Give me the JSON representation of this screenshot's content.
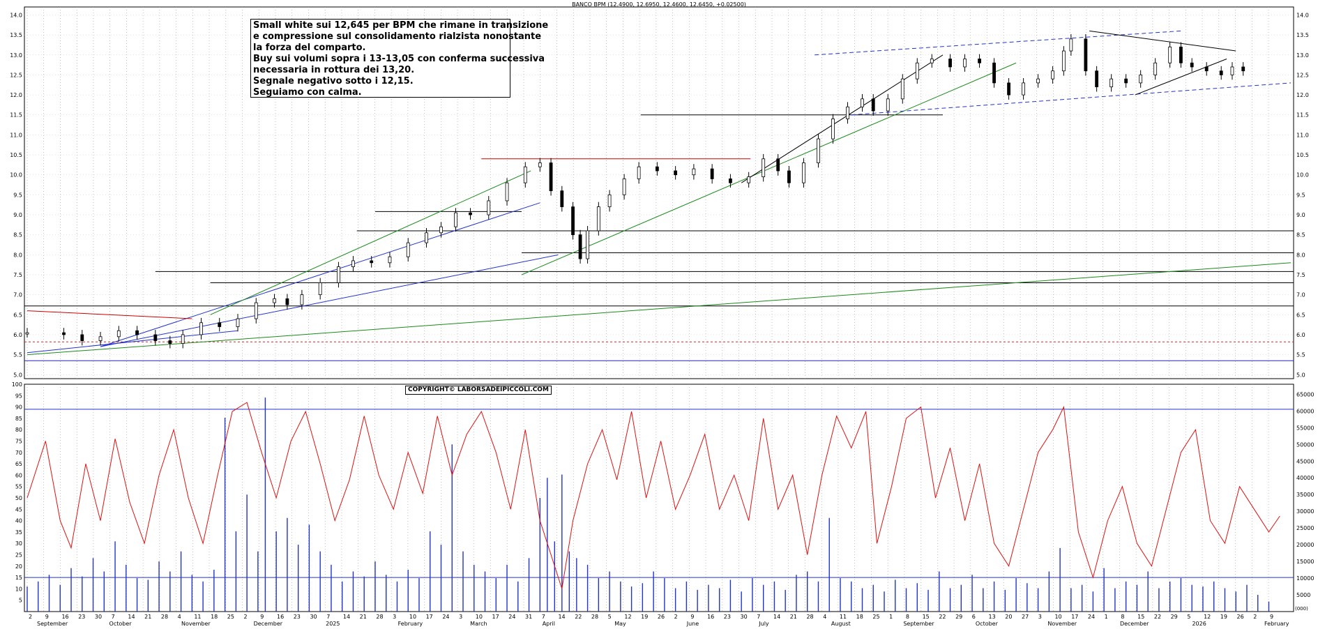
{
  "chart_data": {
    "type": "line",
    "title": "BANCO BPM (12.4900, 12.6950, 12.4600, 12.6450, +0.02500)",
    "annotation_lines": [
      "Small white sui 12,645 per BPM che rimane in transizione",
      "e compressione sul consolidamento rialzista nonostante",
      "la forza del comparto.",
      "Buy sui volumi sopra i 13-13,05 con conferma successiva",
      "necessaria in rottura dei 13,20.",
      "Segnale negativo sotto i 12,15.",
      "Seguiamo con calma."
    ],
    "copyright": "COPYRIGHT© LABORSADEIPICCOLI.COM",
    "price_axis": {
      "ylim": [
        4.9,
        14.2
      ],
      "ticks": [
        "5.0",
        "5.5",
        "6.0",
        "6.5",
        "7.0",
        "7.5",
        "8.0",
        "8.5",
        "9.0",
        "9.5",
        "10.0",
        "10.5",
        "11.0",
        "11.5",
        "12.0",
        "12.5",
        "13.0",
        "13.5",
        "14.0"
      ]
    },
    "oscillator_axis": {
      "ylim": [
        0,
        100
      ],
      "ticks": [
        "5",
        "10",
        "15",
        "20",
        "25",
        "30",
        "35",
        "40",
        "45",
        "50",
        "55",
        "60",
        "65",
        "70",
        "75",
        "80",
        "85",
        "90",
        "95",
        "100"
      ]
    },
    "volume_axis": {
      "ylim": [
        0,
        68000
      ],
      "ticks": [
        "5000",
        "10000",
        "15000",
        "20000",
        "25000",
        "30000",
        "35000",
        "40000",
        "45000",
        "50000",
        "55000",
        "60000",
        "65000"
      ],
      "unit": "(000)"
    },
    "date_ticks": [
      "2",
      "9",
      "16",
      "23",
      "30",
      "7",
      "14",
      "21",
      "28",
      "4",
      "11",
      "18",
      "25",
      "2",
      "9",
      "16",
      "23",
      "30",
      "7",
      "14",
      "21",
      "28",
      "3",
      "10",
      "17",
      "24",
      "3",
      "10",
      "17",
      "24",
      "31",
      "7",
      "14",
      "22",
      "28",
      "5",
      "12",
      "19",
      "26",
      "2",
      "9",
      "16",
      "23",
      "30",
      "7",
      "14",
      "21",
      "28",
      "4",
      "11",
      "18",
      "25",
      "1",
      "8",
      "15",
      "22",
      "29",
      "6",
      "13",
      "20",
      "27",
      "3",
      "10",
      "17",
      "24",
      "1",
      "8",
      "15",
      "22",
      "29",
      "5",
      "12",
      "19",
      "26",
      "2",
      "9"
    ],
    "month_labels": [
      "September",
      "October",
      "November",
      "December",
      "2025",
      "February",
      "March",
      "April",
      "May",
      "June",
      "July",
      "August",
      "September",
      "October",
      "November",
      "December",
      "2026",
      "February"
    ],
    "horizontal_levels": [
      {
        "value": 11.5,
        "color": "#000000"
      },
      {
        "value": 8.6,
        "color": "#000000"
      },
      {
        "value": 8.05,
        "color": "#000000"
      },
      {
        "value": 7.58,
        "color": "#000000"
      },
      {
        "value": 7.3,
        "color": "#000000"
      },
      {
        "value": 6.72,
        "color": "#000000"
      },
      {
        "value": 5.82,
        "color": "#dd2222",
        "dashed": true
      },
      {
        "value": 5.35,
        "color": "#2222cc"
      },
      {
        "value": 10.4,
        "color": "#cc0000"
      },
      {
        "value": 9.08,
        "color": "#000000"
      }
    ],
    "oscillator_levels": [
      89,
      15
    ],
    "price_path": [
      [
        0,
        6.05
      ],
      [
        20,
        6.0
      ],
      [
        30,
        5.85
      ],
      [
        40,
        5.95
      ],
      [
        50,
        6.1
      ],
      [
        60,
        6.0
      ],
      [
        70,
        5.85
      ],
      [
        78,
        5.78
      ],
      [
        85,
        6.0
      ],
      [
        95,
        6.3
      ],
      [
        105,
        6.2
      ],
      [
        115,
        6.4
      ],
      [
        125,
        6.8
      ],
      [
        135,
        6.9
      ],
      [
        142,
        6.75
      ],
      [
        150,
        7.0
      ],
      [
        160,
        7.3
      ],
      [
        170,
        7.7
      ],
      [
        178,
        7.85
      ],
      [
        188,
        7.8
      ],
      [
        198,
        7.95
      ],
      [
        208,
        8.3
      ],
      [
        218,
        8.55
      ],
      [
        226,
        8.7
      ],
      [
        234,
        9.05
      ],
      [
        242,
        9.0
      ],
      [
        252,
        9.35
      ],
      [
        262,
        9.8
      ],
      [
        272,
        10.2
      ],
      [
        280,
        10.3
      ],
      [
        286,
        9.6
      ],
      [
        292,
        9.2
      ],
      [
        298,
        8.5
      ],
      [
        302,
        7.9
      ],
      [
        306,
        8.6
      ],
      [
        312,
        9.2
      ],
      [
        318,
        9.5
      ],
      [
        326,
        9.9
      ],
      [
        334,
        10.2
      ],
      [
        344,
        10.1
      ],
      [
        354,
        10.0
      ],
      [
        364,
        10.15
      ],
      [
        374,
        9.9
      ],
      [
        384,
        9.8
      ],
      [
        394,
        9.95
      ],
      [
        402,
        10.4
      ],
      [
        410,
        10.1
      ],
      [
        416,
        9.8
      ],
      [
        424,
        10.3
      ],
      [
        432,
        10.9
      ],
      [
        440,
        11.4
      ],
      [
        448,
        11.7
      ],
      [
        456,
        11.9
      ],
      [
        462,
        11.6
      ],
      [
        470,
        11.9
      ],
      [
        478,
        12.4
      ],
      [
        486,
        12.8
      ],
      [
        494,
        12.9
      ],
      [
        504,
        12.7
      ],
      [
        512,
        12.9
      ],
      [
        520,
        12.8
      ],
      [
        528,
        12.3
      ],
      [
        536,
        12.0
      ],
      [
        544,
        12.3
      ],
      [
        552,
        12.4
      ],
      [
        560,
        12.6
      ],
      [
        566,
        13.1
      ],
      [
        570,
        13.4
      ],
      [
        578,
        12.6
      ],
      [
        584,
        12.2
      ],
      [
        592,
        12.4
      ],
      [
        600,
        12.3
      ],
      [
        608,
        12.5
      ],
      [
        616,
        12.8
      ],
      [
        624,
        13.2
      ],
      [
        630,
        12.8
      ],
      [
        636,
        12.7
      ],
      [
        644,
        12.6
      ],
      [
        652,
        12.5
      ],
      [
        658,
        12.7
      ],
      [
        664,
        12.6
      ]
    ],
    "oscillator_path": [
      [
        0,
        50
      ],
      [
        10,
        75
      ],
      [
        18,
        40
      ],
      [
        24,
        28
      ],
      [
        32,
        65
      ],
      [
        40,
        40
      ],
      [
        48,
        76
      ],
      [
        56,
        48
      ],
      [
        64,
        30
      ],
      [
        72,
        60
      ],
      [
        80,
        80
      ],
      [
        88,
        50
      ],
      [
        96,
        30
      ],
      [
        104,
        60
      ],
      [
        112,
        88
      ],
      [
        120,
        92
      ],
      [
        128,
        70
      ],
      [
        136,
        50
      ],
      [
        144,
        75
      ],
      [
        152,
        88
      ],
      [
        160,
        65
      ],
      [
        168,
        40
      ],
      [
        176,
        58
      ],
      [
        184,
        86
      ],
      [
        192,
        60
      ],
      [
        200,
        45
      ],
      [
        208,
        70
      ],
      [
        216,
        52
      ],
      [
        224,
        86
      ],
      [
        232,
        60
      ],
      [
        240,
        78
      ],
      [
        248,
        88
      ],
      [
        256,
        70
      ],
      [
        264,
        45
      ],
      [
        272,
        80
      ],
      [
        280,
        40
      ],
      [
        286,
        25
      ],
      [
        292,
        10
      ],
      [
        298,
        40
      ],
      [
        306,
        65
      ],
      [
        314,
        80
      ],
      [
        322,
        58
      ],
      [
        330,
        88
      ],
      [
        338,
        50
      ],
      [
        346,
        75
      ],
      [
        354,
        45
      ],
      [
        362,
        60
      ],
      [
        370,
        78
      ],
      [
        378,
        45
      ],
      [
        386,
        60
      ],
      [
        394,
        40
      ],
      [
        402,
        85
      ],
      [
        410,
        45
      ],
      [
        418,
        60
      ],
      [
        426,
        25
      ],
      [
        434,
        60
      ],
      [
        442,
        86
      ],
      [
        450,
        72
      ],
      [
        458,
        88
      ],
      [
        464,
        30
      ],
      [
        472,
        55
      ],
      [
        480,
        85
      ],
      [
        488,
        90
      ],
      [
        496,
        50
      ],
      [
        504,
        72
      ],
      [
        512,
        40
      ],
      [
        520,
        65
      ],
      [
        528,
        30
      ],
      [
        536,
        20
      ],
      [
        544,
        45
      ],
      [
        552,
        70
      ],
      [
        560,
        80
      ],
      [
        566,
        90
      ],
      [
        574,
        35
      ],
      [
        582,
        15
      ],
      [
        590,
        40
      ],
      [
        598,
        55
      ],
      [
        606,
        30
      ],
      [
        614,
        20
      ],
      [
        622,
        45
      ],
      [
        630,
        70
      ],
      [
        638,
        80
      ],
      [
        646,
        40
      ],
      [
        654,
        30
      ],
      [
        662,
        55
      ],
      [
        670,
        45
      ],
      [
        678,
        35
      ],
      [
        684,
        42
      ]
    ],
    "volume_bars": [
      [
        0,
        7500
      ],
      [
        6,
        9000
      ],
      [
        12,
        11000
      ],
      [
        18,
        8000
      ],
      [
        24,
        13000
      ],
      [
        30,
        10500
      ],
      [
        36,
        16000
      ],
      [
        42,
        12000
      ],
      [
        48,
        21000
      ],
      [
        54,
        14000
      ],
      [
        60,
        10000
      ],
      [
        66,
        9500
      ],
      [
        72,
        15000
      ],
      [
        78,
        12000
      ],
      [
        84,
        18000
      ],
      [
        90,
        11000
      ],
      [
        96,
        9000
      ],
      [
        102,
        12500
      ],
      [
        108,
        58000
      ],
      [
        114,
        24000
      ],
      [
        120,
        35000
      ],
      [
        126,
        18000
      ],
      [
        130,
        64000
      ],
      [
        136,
        24000
      ],
      [
        142,
        28000
      ],
      [
        148,
        20000
      ],
      [
        154,
        26000
      ],
      [
        160,
        18000
      ],
      [
        166,
        14000
      ],
      [
        172,
        9000
      ],
      [
        178,
        12000
      ],
      [
        184,
        10500
      ],
      [
        190,
        15000
      ],
      [
        196,
        11000
      ],
      [
        202,
        9000
      ],
      [
        208,
        12500
      ],
      [
        214,
        10000
      ],
      [
        220,
        24000
      ],
      [
        226,
        20000
      ],
      [
        232,
        50000
      ],
      [
        238,
        18000
      ],
      [
        244,
        14000
      ],
      [
        250,
        12000
      ],
      [
        256,
        10000
      ],
      [
        262,
        14000
      ],
      [
        268,
        9000
      ],
      [
        274,
        16000
      ],
      [
        280,
        34000
      ],
      [
        284,
        40000
      ],
      [
        288,
        21000
      ],
      [
        292,
        41000
      ],
      [
        296,
        18000
      ],
      [
        300,
        16000
      ],
      [
        306,
        14000
      ],
      [
        312,
        10000
      ],
      [
        318,
        12000
      ],
      [
        324,
        9000
      ],
      [
        330,
        7500
      ],
      [
        336,
        8500
      ],
      [
        342,
        12000
      ],
      [
        348,
        10000
      ],
      [
        354,
        7000
      ],
      [
        360,
        9000
      ],
      [
        366,
        6500
      ],
      [
        372,
        8000
      ],
      [
        378,
        7000
      ],
      [
        384,
        9500
      ],
      [
        390,
        6000
      ],
      [
        396,
        10000
      ],
      [
        402,
        8000
      ],
      [
        408,
        9000
      ],
      [
        414,
        6500
      ],
      [
        420,
        11000
      ],
      [
        426,
        12000
      ],
      [
        432,
        9000
      ],
      [
        438,
        28000
      ],
      [
        444,
        10000
      ],
      [
        450,
        9000
      ],
      [
        456,
        7000
      ],
      [
        462,
        8000
      ],
      [
        468,
        6000
      ],
      [
        474,
        9500
      ],
      [
        480,
        7000
      ],
      [
        486,
        8500
      ],
      [
        492,
        6500
      ],
      [
        498,
        12000
      ],
      [
        504,
        7000
      ],
      [
        510,
        8000
      ],
      [
        516,
        11000
      ],
      [
        522,
        7000
      ],
      [
        528,
        9000
      ],
      [
        534,
        6500
      ],
      [
        540,
        10000
      ],
      [
        546,
        8500
      ],
      [
        552,
        7000
      ],
      [
        558,
        12000
      ],
      [
        564,
        19000
      ],
      [
        570,
        7000
      ],
      [
        576,
        8000
      ],
      [
        582,
        6000
      ],
      [
        588,
        13000
      ],
      [
        594,
        7000
      ],
      [
        600,
        9000
      ],
      [
        606,
        8000
      ],
      [
        612,
        12000
      ],
      [
        618,
        7000
      ],
      [
        624,
        9000
      ],
      [
        630,
        10000
      ],
      [
        636,
        8000
      ],
      [
        642,
        7500
      ],
      [
        648,
        9000
      ],
      [
        654,
        7000
      ],
      [
        660,
        6000
      ],
      [
        666,
        8000
      ],
      [
        672,
        5000
      ],
      [
        678,
        3000
      ]
    ]
  }
}
